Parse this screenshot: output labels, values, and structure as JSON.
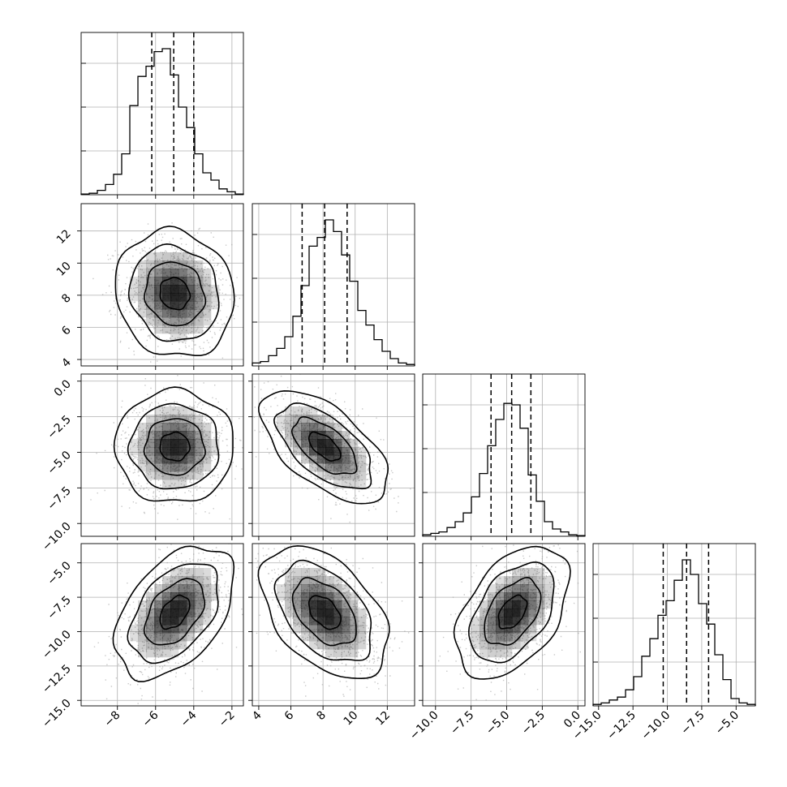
{
  "chart_data": {
    "type": "corner",
    "params": [
      {
        "range": [
          -9.9,
          -1.4
        ],
        "mean": -5.0,
        "std": 1.1,
        "quantiles": [
          -6.2,
          -5.05,
          -4.0
        ],
        "ticks": [
          {
            "v": -8,
            "label": "−8"
          },
          {
            "v": -6,
            "label": "−6"
          },
          {
            "v": -4,
            "label": "−4"
          },
          {
            "v": -2,
            "label": "−2"
          }
        ],
        "hist": [
          0.005,
          0.01,
          0.03,
          0.07,
          0.14,
          0.28,
          0.61,
          0.81,
          0.88,
          0.98,
          1.0,
          0.82,
          0.6,
          0.46,
          0.28,
          0.15,
          0.1,
          0.04,
          0.02,
          0.005
        ]
      },
      {
        "range": [
          3.6,
          13.7
        ],
        "mean": 8.1,
        "std": 1.4,
        "quantiles": [
          6.7,
          8.1,
          9.5
        ],
        "ticks": [
          {
            "v": 4,
            "label": "4"
          },
          {
            "v": 6,
            "label": "6"
          },
          {
            "v": 8,
            "label": "8"
          },
          {
            "v": 10,
            "label": "10"
          },
          {
            "v": 12,
            "label": "12"
          }
        ],
        "hist": [
          0.02,
          0.03,
          0.07,
          0.12,
          0.2,
          0.34,
          0.55,
          0.82,
          0.88,
          1.0,
          0.92,
          0.76,
          0.58,
          0.38,
          0.28,
          0.18,
          0.1,
          0.05,
          0.02,
          0.01
        ]
      },
      {
        "range": [
          -10.9,
          0.5
        ],
        "mean": -4.6,
        "std": 1.4,
        "quantiles": [
          -6.1,
          -4.65,
          -3.3
        ],
        "ticks": [
          {
            "v": -10,
            "label": "−10.0"
          },
          {
            "v": -7.5,
            "label": "−7.5"
          },
          {
            "v": -5,
            "label": "−5.0"
          },
          {
            "v": -2.5,
            "label": "−2.5"
          },
          {
            "v": 0,
            "label": "0.0"
          }
        ],
        "hist": [
          0.01,
          0.02,
          0.03,
          0.06,
          0.1,
          0.16,
          0.27,
          0.43,
          0.62,
          0.8,
          0.91,
          0.9,
          0.74,
          0.42,
          0.24,
          0.1,
          0.05,
          0.03,
          0.01,
          0.005
        ]
      },
      {
        "range": [
          -15.4,
          -3.6
        ],
        "mean": -8.6,
        "std": 1.7,
        "quantiles": [
          -10.3,
          -8.6,
          -7.0
        ],
        "ticks": [
          {
            "v": -15,
            "label": "−15.0"
          },
          {
            "v": -12.5,
            "label": "−12.5"
          },
          {
            "v": -10,
            "label": "−10.0"
          },
          {
            "v": -7.5,
            "label": "−7.5"
          },
          {
            "v": -5,
            "label": "−5.0"
          }
        ],
        "hist": [
          0.01,
          0.02,
          0.04,
          0.06,
          0.11,
          0.2,
          0.34,
          0.46,
          0.62,
          0.72,
          0.86,
          1.0,
          0.9,
          0.7,
          0.56,
          0.35,
          0.18,
          0.05,
          0.02,
          0.01
        ]
      }
    ],
    "correlations": {
      "1-0": -0.1,
      "2-0": 0.0,
      "2-1": -0.6,
      "3-0": 0.45,
      "3-1": -0.45,
      "3-2": 0.45
    },
    "contour_levels_sigma": [
      0.5,
      1.0,
      1.5,
      2.0
    ],
    "hist_yticks": [
      0.3,
      0.6,
      0.9
    ],
    "grid": true,
    "colors": {
      "density": "#000000",
      "line": "#000000",
      "grid": "#b0b0b0",
      "scatter": "#9a9a9a"
    }
  }
}
